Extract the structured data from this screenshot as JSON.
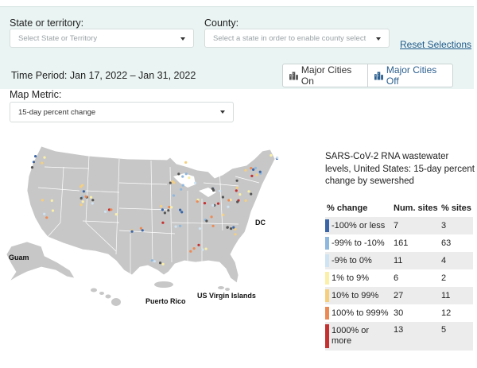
{
  "filters": {
    "state_label": "State or territory:",
    "state_placeholder": "Select State or Territory",
    "county_label": "County:",
    "county_placeholder": "Select a state in order to enable county select",
    "reset_label": "Reset Selections",
    "time_period": "Time Period: Jan 17, 2022 – Jan 31, 2022",
    "major_cities_on": "Major Cities On",
    "major_cities_off": "Major Cities Off"
  },
  "metric": {
    "label": "Map Metric:",
    "value": "15-day percent change"
  },
  "map": {
    "labels": {
      "guam": "Guam",
      "puerto_rico": "Puerto Rico",
      "virgin_islands": "US Virgin Islands",
      "dc": "DC"
    }
  },
  "legend": {
    "title": "SARS-CoV-2 RNA wastewater levels, United States: 15-day percent change by sewershed",
    "headers": {
      "bin": "% change",
      "sites": "Num. sites",
      "pct": "% sites"
    },
    "rows": [
      {
        "bin": "-100% or less",
        "sites": "7",
        "pct": "3",
        "color": "#3a66a8"
      },
      {
        "bin": "-99% to -10%",
        "sites": "161",
        "pct": "63",
        "color": "#8fb8de"
      },
      {
        "bin": "-9% to 0%",
        "sites": "11",
        "pct": "4",
        "color": "#cfe3f3"
      },
      {
        "bin": "1% to 9%",
        "sites": "6",
        "pct": "2",
        "color": "#fbf0a8"
      },
      {
        "bin": "10% to 99%",
        "sites": "27",
        "pct": "11",
        "color": "#f6cf7e"
      },
      {
        "bin": "100% to 999%",
        "sites": "30",
        "pct": "12",
        "color": "#ec8a55"
      },
      {
        "bin": "1000% or more",
        "sites": "13",
        "pct": "5",
        "color": "#c53131"
      }
    ]
  },
  "colors": {
    "panel_bg": "#eaf4f3",
    "land": "#c7c7c7",
    "state_border": "#ffffff",
    "no_data_dot": "#555555",
    "link": "#1f5a8a"
  }
}
